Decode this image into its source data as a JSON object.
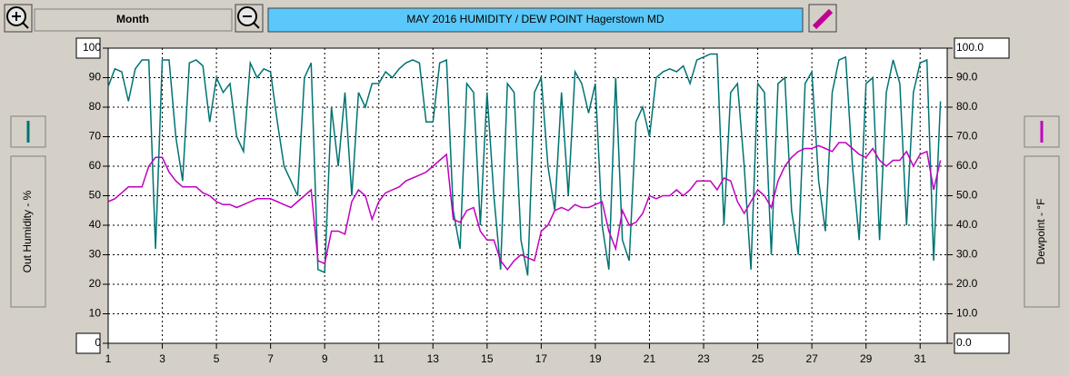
{
  "toolbar": {
    "button": "Month"
  },
  "chart_data": {
    "type": "line",
    "title": "MAY   2016   HUMIDITY / DEW POINT  Hagerstown MD",
    "ylabel": "Out Humidity - %",
    "y2label": "Dewpoint - °F",
    "x": [
      1,
      1.25,
      1.5,
      1.75,
      2,
      2.25,
      2.5,
      2.75,
      3,
      3.25,
      3.5,
      3.75,
      4,
      4.25,
      4.5,
      4.75,
      5,
      5.25,
      5.5,
      5.75,
      6,
      6.25,
      6.5,
      6.75,
      7,
      7.25,
      7.5,
      7.75,
      8,
      8.25,
      8.5,
      8.75,
      9,
      9.25,
      9.5,
      9.75,
      10,
      10.25,
      10.5,
      10.75,
      11,
      11.25,
      11.5,
      11.75,
      12,
      12.25,
      12.5,
      12.75,
      13,
      13.25,
      13.5,
      13.75,
      14,
      14.25,
      14.5,
      14.75,
      15,
      15.25,
      15.5,
      15.75,
      16,
      16.25,
      16.5,
      16.75,
      17,
      17.25,
      17.5,
      17.75,
      18,
      18.25,
      18.5,
      18.75,
      19,
      19.25,
      19.5,
      19.75,
      20,
      20.25,
      20.5,
      20.75,
      21,
      21.25,
      21.5,
      21.75,
      22,
      22.25,
      22.5,
      22.75,
      23,
      23.25,
      23.5,
      23.75,
      24,
      24.25,
      24.5,
      24.75,
      25,
      25.25,
      25.5,
      25.75,
      26,
      26.25,
      26.5,
      26.75,
      27,
      27.25,
      27.5,
      27.75,
      28,
      28.25,
      28.5,
      28.75,
      29,
      29.25,
      29.5,
      29.75,
      30,
      30.25,
      30.5,
      30.75,
      31,
      31.25,
      31.5,
      31.75
    ],
    "xlim": [
      1,
      32
    ],
    "xticks": [
      1,
      3,
      5,
      7,
      9,
      11,
      13,
      15,
      17,
      19,
      21,
      23,
      25,
      27,
      29,
      31
    ],
    "ylim": [
      0,
      100
    ],
    "yticks": [
      0,
      10,
      20,
      30,
      40,
      50,
      60,
      70,
      80,
      90,
      100
    ],
    "y2lim": [
      0,
      100
    ],
    "y2ticks": [
      {
        "value": 0,
        "label": "0.0"
      },
      {
        "value": 10,
        "label": "10.0"
      },
      {
        "value": 20,
        "label": "20.0"
      },
      {
        "value": 30,
        "label": "30.0"
      },
      {
        "value": 40,
        "label": "40.0"
      },
      {
        "value": 50,
        "label": "50.0"
      },
      {
        "value": 60,
        "label": "60.0"
      },
      {
        "value": 70,
        "label": "70.0"
      },
      {
        "value": 80,
        "label": "80.0"
      },
      {
        "value": 90,
        "label": "90.0"
      },
      {
        "value": 100,
        "label": "100.0"
      }
    ],
    "grid": true,
    "series": [
      {
        "color": "#007373",
        "values": [
          87,
          93,
          92,
          82,
          93,
          96,
          96,
          32,
          96,
          96,
          70,
          55,
          95,
          96,
          94,
          75,
          90,
          85,
          88,
          70,
          65,
          95,
          90,
          93,
          92,
          75,
          60,
          55,
          50,
          90,
          95,
          25,
          24,
          80,
          60,
          85,
          50,
          85,
          80,
          88,
          88,
          92,
          90,
          93,
          95,
          96,
          95,
          75,
          75,
          95,
          96,
          45,
          32,
          88,
          85,
          40,
          85,
          50,
          25,
          88,
          85,
          35,
          23,
          85,
          90,
          60,
          45,
          85,
          50,
          92,
          88,
          78,
          88,
          40,
          25,
          90,
          35,
          28,
          75,
          80,
          70,
          90,
          92,
          93,
          92,
          94,
          88,
          96,
          97,
          98,
          98,
          40,
          85,
          88,
          60,
          25,
          88,
          85,
          30,
          88,
          90,
          45,
          30,
          88,
          92,
          55,
          38,
          85,
          96,
          97,
          60,
          35,
          88,
          90,
          35,
          85,
          96,
          88,
          40,
          85,
          95,
          96,
          28,
          82
        ]
      },
      {
        "color": "#c000c0",
        "axis": "y2",
        "values": [
          48,
          49,
          51,
          53,
          53,
          53,
          60,
          63,
          63,
          58,
          55,
          53,
          53,
          53,
          51,
          50,
          48,
          47,
          47,
          46,
          47,
          48,
          49,
          49,
          49,
          48,
          47,
          46,
          48,
          50,
          52,
          28,
          27,
          38,
          38,
          37,
          48,
          52,
          50,
          42,
          48,
          51,
          52,
          53,
          55,
          56,
          57,
          58,
          60,
          62,
          64,
          42,
          41,
          45,
          46,
          38,
          35,
          35,
          28,
          25,
          28,
          30,
          29,
          28,
          38,
          40,
          45,
          46,
          45,
          47,
          46,
          46,
          47,
          48,
          38,
          32,
          45,
          40,
          41,
          44,
          50,
          49,
          50,
          50,
          52,
          50,
          52,
          55,
          55,
          55,
          52,
          56,
          55,
          48,
          44,
          48,
          52,
          50,
          46,
          55,
          60,
          63,
          65,
          66,
          66,
          67,
          66,
          65,
          68,
          68,
          66,
          64,
          63,
          66,
          62,
          60,
          62,
          62,
          65,
          60,
          64,
          65,
          52,
          62
        ]
      }
    ]
  }
}
